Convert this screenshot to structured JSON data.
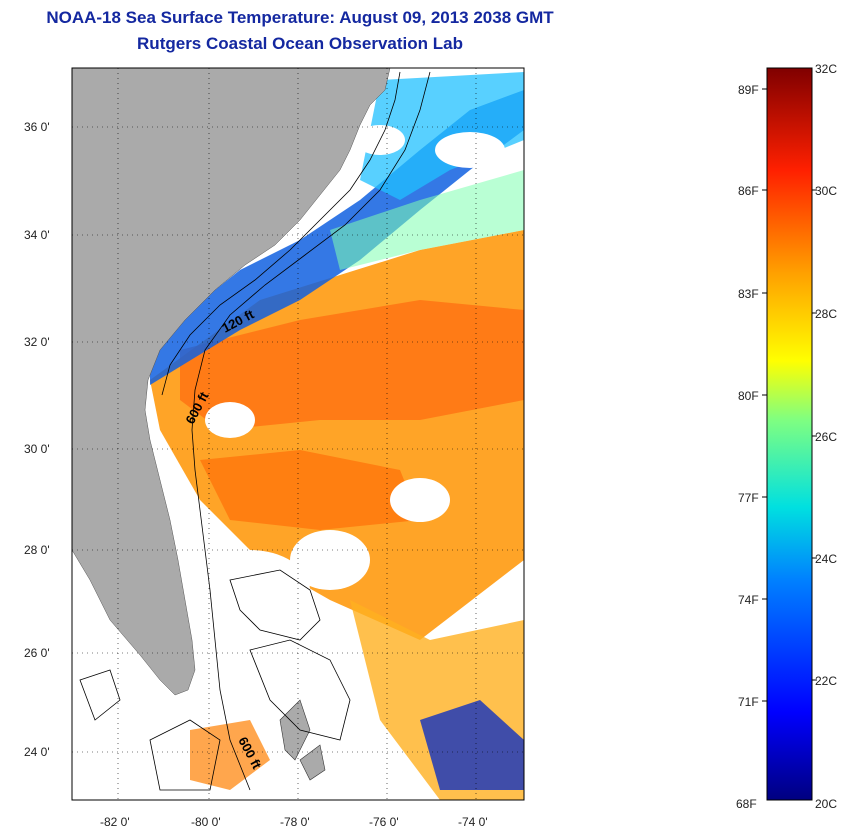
{
  "header": {
    "title": "NOAA-18 Sea Surface Temperature:  August 09, 2013 2038 GMT",
    "subtitle": "Rutgers Coastal Ocean Observation Lab"
  },
  "map": {
    "lat_range": [
      23.0,
      37.0
    ],
    "lon_range": [
      -83.0,
      -73.0
    ],
    "lat_ticks": [
      "36 0'",
      "34 0'",
      "32 0'",
      "30 0'",
      "28 0'",
      "26 0'",
      "24 0'"
    ],
    "lon_ticks": [
      "-82 0'",
      "-80 0'",
      "-78 0'",
      "-76 0'",
      "-74 0'"
    ],
    "contours": [
      "120 ft",
      "600 ft",
      "600 ft"
    ],
    "colors": {
      "land": "#aaaaaa",
      "cloud": "#ffffff",
      "contour": "#000000"
    }
  },
  "colorbar": {
    "range_c": [
      20,
      32
    ],
    "celsius_labels": [
      "32C",
      "30C",
      "28C",
      "26C",
      "24C",
      "22C",
      "20C"
    ],
    "fahrenheit_labels": [
      "89F",
      "86F",
      "83F",
      "80F",
      "77F",
      "74F",
      "71F",
      "68F"
    ]
  }
}
